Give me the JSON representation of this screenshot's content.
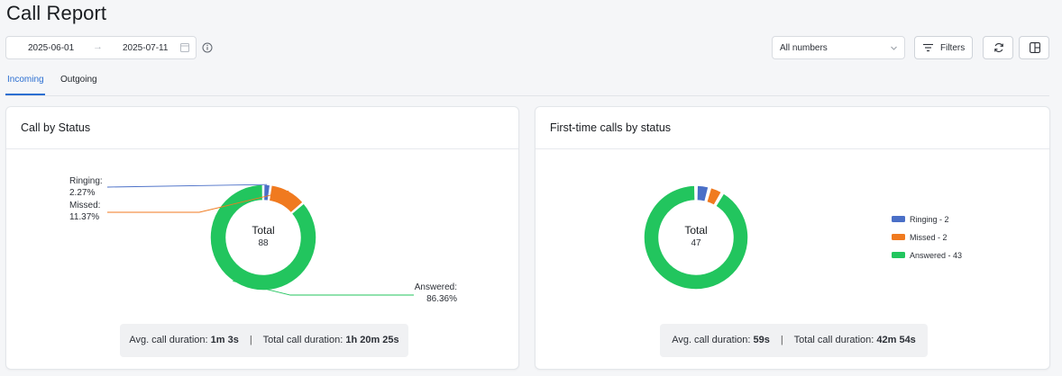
{
  "page": {
    "title": "Call Report"
  },
  "toolbar": {
    "date_start": "2025-06-01",
    "date_end": "2025-07-11",
    "numbers_select": "All numbers",
    "filters_label": "Filters"
  },
  "tabs": [
    {
      "label": "Incoming",
      "active": true
    },
    {
      "label": "Outgoing",
      "active": false
    }
  ],
  "colors": {
    "ringing": "#4a6fc7",
    "missed": "#f07a1f",
    "answered": "#22c55e",
    "accent": "#2c6fd1"
  },
  "cards": [
    {
      "title": "Call by Status",
      "total_label": "Total",
      "total_value": "88",
      "labels": {
        "ringing": "Ringing:",
        "ringing_pct": "2.27%",
        "missed": "Missed:",
        "missed_pct": "11.37%",
        "answered": "Answered:",
        "answered_pct": "86.36%"
      },
      "summary": {
        "avg_label": "Avg. call duration:",
        "avg_value": "1m 3s",
        "total_label": "Total call duration:",
        "total_value": "1h 20m 25s"
      }
    },
    {
      "title": "First-time calls by status",
      "total_label": "Total",
      "total_value": "47",
      "legend": [
        "Ringing - 2",
        "Missed - 2",
        "Answered - 43"
      ],
      "summary": {
        "avg_label": "Avg. call duration:",
        "avg_value": "59s",
        "total_label": "Total call duration:",
        "total_value": "42m 54s"
      }
    }
  ],
  "chart_data": [
    {
      "type": "pie",
      "title": "Call by Status",
      "categories": [
        "Ringing",
        "Missed",
        "Answered"
      ],
      "values": [
        2.27,
        11.37,
        86.36
      ],
      "unit": "%"
    },
    {
      "type": "pie",
      "title": "First-time calls by status",
      "categories": [
        "Ringing",
        "Missed",
        "Answered"
      ],
      "values": [
        2,
        2,
        43
      ]
    }
  ]
}
